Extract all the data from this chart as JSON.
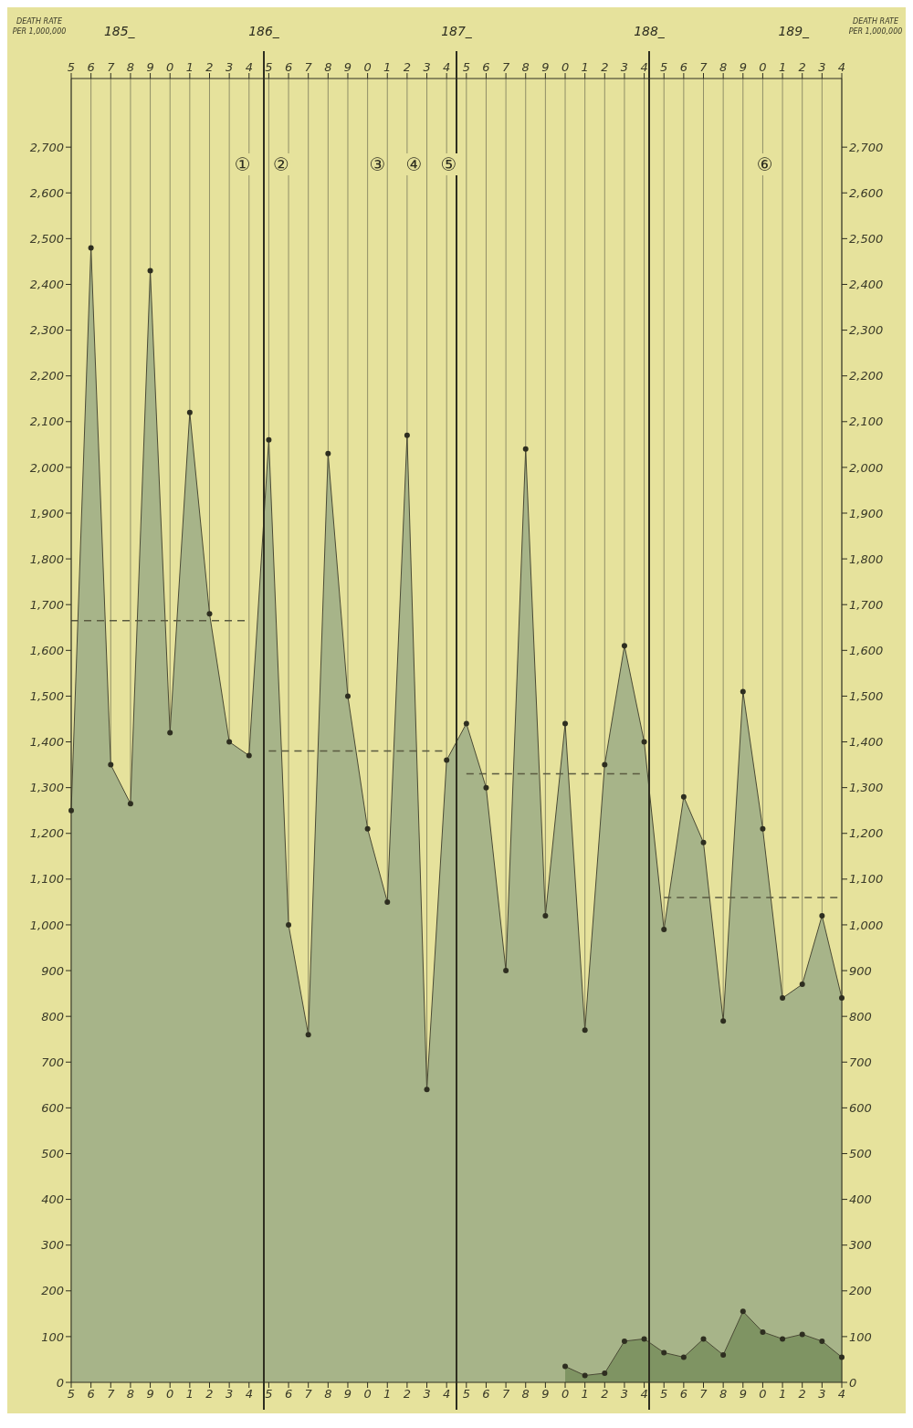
{
  "chart_data": {
    "type": "area",
    "ylabel": "DEATH RATE PER 1,000,000",
    "y2label": "DEATH RATE PER 1,000,000",
    "categories": [
      "5",
      "6",
      "7",
      "8",
      "9",
      "0",
      "1",
      "2",
      "3",
      "4",
      "5",
      "6",
      "7",
      "8",
      "9",
      "0",
      "1",
      "2",
      "3",
      "4",
      "5",
      "6",
      "7",
      "8",
      "9",
      "0",
      "1",
      "2",
      "3",
      "4",
      "5",
      "6",
      "7",
      "8",
      "9",
      "0",
      "1",
      "2",
      "3",
      "4"
    ],
    "series": [
      {
        "color": "#a7b489",
        "values": [
          1250,
          2480,
          1350,
          1265,
          2430,
          1420,
          2120,
          1680,
          1400,
          1370,
          2060,
          1000,
          760,
          2030,
          1500,
          1210,
          1050,
          2070,
          640,
          1360,
          1440,
          1300,
          900,
          2040,
          1020,
          1440,
          770,
          1350,
          1610,
          1400,
          990,
          1280,
          1180,
          790,
          1510,
          1210,
          840,
          870,
          1020,
          840
        ]
      },
      {
        "color": "#7f9463",
        "values": [
          null,
          null,
          null,
          null,
          null,
          null,
          null,
          null,
          null,
          null,
          null,
          null,
          null,
          null,
          null,
          null,
          null,
          null,
          null,
          null,
          null,
          null,
          null,
          null,
          null,
          35,
          15,
          20,
          90,
          95,
          65,
          55,
          95,
          60,
          155,
          110,
          95,
          105,
          90,
          55
        ]
      },
      {
        "type": "line",
        "color": "#5a5a40",
        "line_style": "dashed",
        "marker": "none",
        "values": [
          1665,
          1665,
          1665,
          1665,
          1665,
          1665,
          1665,
          1665,
          1665,
          1665,
          null,
          null,
          null,
          null,
          null,
          null,
          null,
          null,
          null,
          null,
          null,
          null,
          null,
          null,
          null,
          null,
          null,
          null,
          null,
          null,
          null,
          null,
          null,
          null,
          null,
          null,
          null,
          null,
          null,
          null
        ]
      },
      {
        "type": "line",
        "color": "#5a5a40",
        "line_style": "dashed",
        "marker": "none",
        "values": [
          null,
          null,
          null,
          null,
          null,
          null,
          null,
          null,
          null,
          null,
          1380,
          1380,
          1380,
          1380,
          1380,
          1380,
          1380,
          1380,
          1380,
          1380,
          null,
          null,
          null,
          null,
          null,
          null,
          null,
          null,
          null,
          null,
          null,
          null,
          null,
          null,
          null,
          null,
          null,
          null,
          null,
          null
        ]
      },
      {
        "type": "line",
        "color": "#5a5a40",
        "line_style": "dashed",
        "marker": "none",
        "values": [
          null,
          null,
          null,
          null,
          null,
          null,
          null,
          null,
          null,
          null,
          null,
          null,
          null,
          null,
          null,
          null,
          null,
          null,
          null,
          null,
          1330,
          1330,
          1330,
          1330,
          1330,
          1330,
          1330,
          1330,
          1330,
          1330,
          null,
          null,
          null,
          null,
          null,
          null,
          null,
          null,
          null,
          null
        ]
      },
      {
        "type": "line",
        "color": "#5a5a40",
        "line_style": "dashed",
        "marker": "none",
        "values": [
          null,
          null,
          null,
          null,
          null,
          null,
          null,
          null,
          null,
          null,
          null,
          null,
          null,
          null,
          null,
          null,
          null,
          null,
          null,
          null,
          null,
          null,
          null,
          null,
          null,
          null,
          null,
          null,
          null,
          null,
          1060,
          1060,
          1060,
          1060,
          1060,
          1060,
          1060,
          1060,
          1060,
          1060
        ]
      }
    ],
    "marker": "circle",
    "ylim": [
      0,
      2850
    ],
    "yticks": [
      0,
      100,
      200,
      300,
      400,
      500,
      600,
      700,
      800,
      900,
      {
        "value": 1000,
        "label": "1,000"
      },
      {
        "value": 1100,
        "label": "1,100"
      },
      {
        "value": 1200,
        "label": "1,200"
      },
      {
        "value": 1300,
        "label": "1,300"
      },
      {
        "value": 1400,
        "label": "1,400"
      },
      {
        "value": 1500,
        "label": "1,500"
      },
      {
        "value": 1600,
        "label": "1,600"
      },
      {
        "value": 1700,
        "label": "1,700"
      },
      {
        "value": 1800,
        "label": "1,800"
      },
      {
        "value": 1900,
        "label": "1,900"
      },
      {
        "value": 2000,
        "label": "2,000"
      },
      {
        "value": 2100,
        "label": "2,100"
      },
      {
        "value": 2200,
        "label": "2,200"
      },
      {
        "value": 2300,
        "label": "2,300"
      },
      {
        "value": 2400,
        "label": "2,400"
      },
      {
        "value": 2500,
        "label": "2,500"
      },
      {
        "value": 2600,
        "label": "2,600"
      },
      {
        "value": 2700,
        "label": "2,700"
      }
    ],
    "y2lim": [
      0,
      2850
    ],
    "y2ticks": [
      0,
      100,
      200,
      300,
      400,
      500,
      600,
      700,
      800,
      900,
      {
        "value": 1000,
        "label": "1,000"
      },
      {
        "value": 1100,
        "label": "1,100"
      },
      {
        "value": 1200,
        "label": "1,200"
      },
      {
        "value": 1300,
        "label": "1,300"
      },
      {
        "value": 1400,
        "label": "1,400"
      },
      {
        "value": 1500,
        "label": "1,500"
      },
      {
        "value": 1600,
        "label": "1,600"
      },
      {
        "value": 1700,
        "label": "1,700"
      },
      {
        "value": 1800,
        "label": "1,800"
      },
      {
        "value": 1900,
        "label": "1,900"
      },
      {
        "value": 2000,
        "label": "2,000"
      },
      {
        "value": 2100,
        "label": "2,100"
      },
      {
        "value": 2200,
        "label": "2,200"
      },
      {
        "value": 2300,
        "label": "2,300"
      },
      {
        "value": 2400,
        "label": "2,400"
      },
      {
        "value": 2500,
        "label": "2,500"
      },
      {
        "value": 2600,
        "label": "2,600"
      },
      {
        "value": 2700,
        "label": "2,700"
      }
    ],
    "annotations": [
      "185_",
      "186_",
      "187_",
      "188_",
      "189_",
      "①",
      "②",
      "③",
      "④",
      "⑤",
      "⑥"
    ],
    "grid": "x"
  }
}
